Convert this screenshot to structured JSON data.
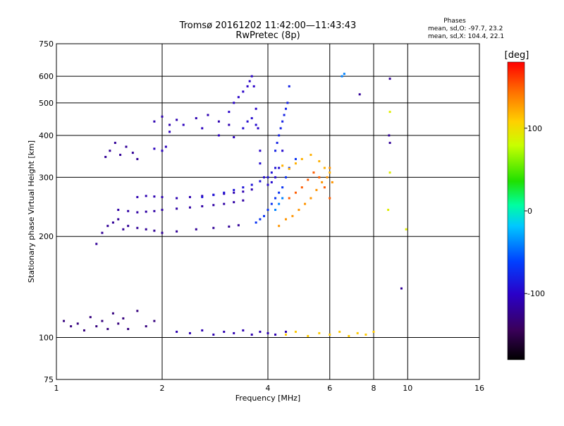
{
  "chart_data": {
    "type": "scatter",
    "title": "Tromsø 20161202 11:42:00—11:43:43",
    "subtitle": "RwPretec (8p)",
    "xlabel": "Frequency [MHz]",
    "ylabel": "Stationary phase Virtual Height [km]",
    "x_scale": "log",
    "y_scale": "log",
    "xlim": [
      1,
      16
    ],
    "ylim": [
      75,
      750
    ],
    "x_ticks": [
      1,
      2,
      4,
      6,
      8,
      10,
      16
    ],
    "x_tick_labels": [
      "1",
      "2",
      "4",
      "6",
      "8",
      "10",
      "16"
    ],
    "y_ticks": [
      75,
      100,
      200,
      300,
      400,
      500,
      600,
      750
    ],
    "y_tick_labels": [
      "75",
      "100",
      "200",
      "300",
      "400",
      "500",
      "600",
      "750"
    ],
    "grid": true,
    "stats": {
      "heading": "Phases",
      "line_o": "mean, sd,O: -97.7, 23.2",
      "line_x": "mean, sd,X: 104.4, 22.1"
    },
    "colorbar": {
      "label": "[deg]",
      "range": [
        -180,
        180
      ],
      "ticks": [
        100,
        0,
        -100
      ],
      "tick_labels": [
        "100",
        "0",
        "-100"
      ]
    },
    "series": [
      {
        "name": "",
        "phase": -130,
        "x": [
          1.05,
          1.1,
          1.15,
          1.2,
          1.25,
          1.3,
          1.35,
          1.4,
          1.45,
          1.5,
          1.55,
          1.6,
          1.7,
          1.8,
          1.9
        ],
        "y": [
          112,
          108,
          110,
          105,
          115,
          108,
          112,
          106,
          118,
          110,
          114,
          106,
          120,
          108,
          112
        ]
      },
      {
        "name": "",
        "phase": -120,
        "x": [
          1.38,
          1.42,
          1.47,
          1.52,
          1.58,
          1.65,
          1.7
        ],
        "y": [
          345,
          360,
          380,
          350,
          370,
          355,
          340
        ]
      },
      {
        "name": "",
        "phase": -120,
        "x": [
          1.3,
          1.35,
          1.4,
          1.45,
          1.5,
          1.55,
          1.6,
          1.7,
          1.8,
          1.9,
          2.0,
          2.2,
          2.5,
          2.8,
          3.1,
          3.3
        ],
        "y": [
          190,
          205,
          215,
          220,
          225,
          210,
          215,
          212,
          210,
          208,
          205,
          207,
          210,
          212,
          214,
          216
        ]
      },
      {
        "name": "",
        "phase": -115,
        "x": [
          1.5,
          1.6,
          1.7,
          1.8,
          1.9,
          2.0,
          2.2,
          2.4,
          2.6,
          2.8,
          3.0,
          3.2,
          3.4
        ],
        "y": [
          240,
          238,
          236,
          237,
          238,
          240,
          242,
          244,
          246,
          248,
          250,
          253,
          256
        ]
      },
      {
        "name": "",
        "phase": -110,
        "x": [
          1.7,
          1.8,
          1.9,
          2.0,
          2.2,
          2.4,
          2.6,
          2.8,
          3.0,
          3.2,
          3.4,
          3.6
        ],
        "y": [
          262,
          264,
          263,
          262,
          260,
          262,
          264,
          266,
          268,
          270,
          272,
          276
        ]
      },
      {
        "name": "",
        "phase": -110,
        "x": [
          1.9,
          2.0,
          2.1,
          2.2,
          2.5,
          2.7,
          2.9,
          3.1
        ],
        "y": [
          440,
          455,
          430,
          445,
          450,
          460,
          440,
          430
        ]
      },
      {
        "name": "",
        "phase": -105,
        "x": [
          1.9,
          2.0,
          2.05,
          2.1,
          2.3,
          2.6,
          2.9,
          3.2
        ],
        "y": [
          365,
          360,
          370,
          410,
          430,
          420,
          400,
          395
        ]
      },
      {
        "name": "",
        "phase": -110,
        "x": [
          2.2,
          2.4,
          2.6,
          2.8,
          3.0,
          3.2,
          3.4,
          3.6,
          3.8,
          4.0,
          4.2,
          4.5
        ],
        "y": [
          104,
          103,
          105,
          102,
          104,
          103,
          105,
          102,
          104,
          103,
          102,
          104
        ]
      },
      {
        "name": "",
        "phase": -100,
        "x": [
          3.1,
          3.2,
          3.3,
          3.4,
          3.5,
          3.55,
          3.6,
          3.65,
          3.7,
          3.75,
          3.8
        ],
        "y": [
          470,
          500,
          520,
          540,
          560,
          580,
          600,
          560,
          480,
          420,
          360
        ]
      },
      {
        "name": "",
        "phase": -95,
        "x": [
          3.4,
          3.5,
          3.6,
          3.7,
          3.8,
          3.9,
          4.0,
          4.1,
          4.2,
          4.3,
          4.4
        ],
        "y": [
          420,
          440,
          450,
          430,
          330,
          300,
          285,
          290,
          300,
          320,
          360
        ]
      },
      {
        "name": "",
        "phase": -90,
        "x": [
          2.6,
          2.8,
          3.0,
          3.2,
          3.4,
          3.6,
          3.8,
          4.0,
          4.1,
          4.2
        ],
        "y": [
          262,
          266,
          270,
          275,
          280,
          285,
          292,
          300,
          310,
          320
        ]
      },
      {
        "name": "",
        "phase": -80,
        "x": [
          4.2,
          4.25,
          4.3,
          4.35,
          4.4,
          4.45,
          4.5,
          4.55,
          4.6
        ],
        "y": [
          360,
          380,
          400,
          420,
          440,
          460,
          480,
          500,
          560
        ]
      },
      {
        "name": "",
        "phase": -70,
        "x": [
          3.7,
          3.8,
          3.9,
          4.0,
          4.1,
          4.2,
          4.3,
          4.4,
          4.5,
          4.6,
          4.8
        ],
        "y": [
          220,
          225,
          230,
          240,
          250,
          260,
          270,
          280,
          300,
          320,
          340
        ]
      },
      {
        "name": "",
        "phase": -40,
        "x": [
          4.2,
          4.3,
          4.4,
          6.5,
          6.6
        ],
        "y": [
          240,
          250,
          260,
          600,
          610
        ]
      },
      {
        "name": "",
        "phase": 130,
        "x": [
          4.3,
          4.5,
          4.7,
          4.9,
          5.1,
          5.3,
          5.5,
          5.7,
          5.9,
          6.0,
          6.1
        ],
        "y": [
          215,
          225,
          230,
          240,
          250,
          260,
          275,
          290,
          300,
          320,
          290
        ]
      },
      {
        "name": "",
        "phase": 150,
        "x": [
          4.6,
          4.8,
          5.0,
          5.2,
          5.4,
          5.6,
          5.8,
          6.0
        ],
        "y": [
          260,
          270,
          280,
          295,
          310,
          300,
          280,
          260
        ]
      },
      {
        "name": "",
        "phase": 120,
        "x": [
          4.4,
          4.6,
          4.8,
          5.0,
          5.3,
          5.6,
          5.8,
          6.0
        ],
        "y": [
          325,
          318,
          330,
          340,
          350,
          335,
          320,
          310
        ]
      },
      {
        "name": "",
        "phase": 110,
        "x": [
          4.5,
          4.8,
          5.2,
          5.6,
          6.0,
          6.4,
          6.8,
          7.2,
          7.6,
          8.0
        ],
        "y": [
          102,
          104,
          101,
          103,
          102,
          104,
          101,
          103,
          102,
          104
        ]
      },
      {
        "name": "",
        "phase": 90,
        "x": [
          8.9,
          8.9,
          8.8,
          9.9
        ],
        "y": [
          470,
          310,
          240,
          210
        ]
      },
      {
        "name": "",
        "phase": -120,
        "x": [
          8.9,
          8.85,
          8.9,
          7.3,
          9.6
        ],
        "y": [
          590,
          400,
          380,
          530,
          140
        ]
      }
    ]
  }
}
